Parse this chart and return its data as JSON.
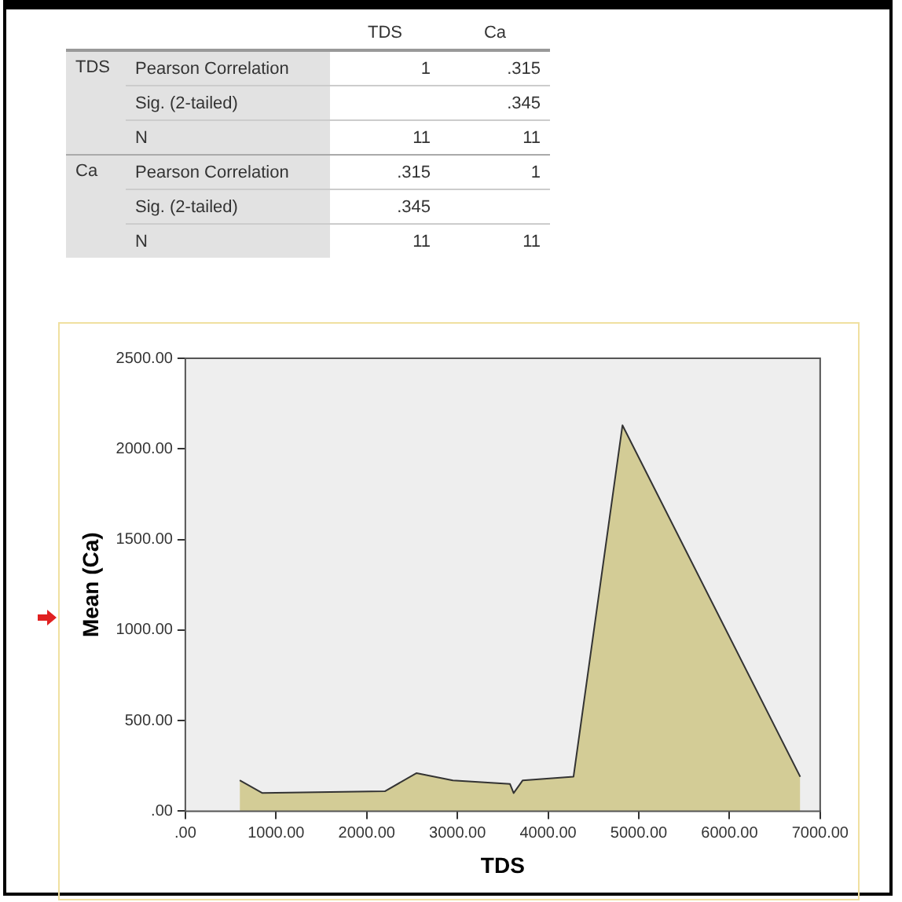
{
  "chart_data": [
    {
      "type": "other",
      "annotations": [
        "TDS",
        "Ca",
        "TDS",
        "Pearson Correlation",
        "1",
        ".315",
        "Sig. (2-tailed)",
        ".345",
        "N",
        "11",
        "11",
        "Ca",
        "Pearson Correlation",
        ".315",
        "1",
        "Sig. (2-tailed)",
        ".345",
        "N",
        "11",
        "11"
      ]
    },
    {
      "type": "area",
      "xlabel": "TDS",
      "ylabel": "Mean (Ca)",
      "color": "#d3cc96",
      "x": [
        600,
        850,
        2200,
        2550,
        2950,
        3580,
        3620,
        3720,
        4280,
        4820,
        6780
      ],
      "values": [
        170,
        100,
        110,
        210,
        170,
        150,
        100,
        170,
        190,
        2130,
        190
      ],
      "xlim": [
        0,
        7000
      ],
      "ylim": [
        0,
        2500
      ],
      "xticks": [
        {
          "value": 0,
          "label": ".00"
        },
        {
          "value": 1000,
          "label": "1000.00"
        },
        {
          "value": 2000,
          "label": "2000.00"
        },
        {
          "value": 3000,
          "label": "3000.00"
        },
        {
          "value": 4000,
          "label": "4000.00"
        },
        {
          "value": 5000,
          "label": "5000.00"
        },
        {
          "value": 6000,
          "label": "6000.00"
        },
        {
          "value": 7000,
          "label": "7000.00"
        }
      ],
      "yticks": [
        {
          "value": 0,
          "label": ".00"
        },
        {
          "value": 500,
          "label": "500.00"
        },
        {
          "value": 1000,
          "label": "1000.00"
        },
        {
          "value": 1500,
          "label": "1500.00"
        },
        {
          "value": 2000,
          "label": "2000.00"
        },
        {
          "value": 2500,
          "label": "2500.00"
        }
      ],
      "grid": false
    }
  ]
}
